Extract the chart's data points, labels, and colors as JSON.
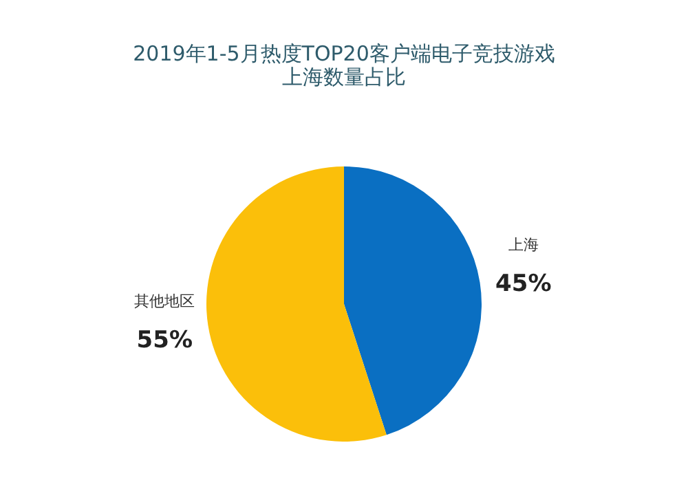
{
  "chart_data": {
    "type": "pie",
    "title": "2019年1-5月热度TOP20客户端电子竞技游戏",
    "subtitle": "上海数量占比",
    "categories": [
      "上海",
      "其他地区"
    ],
    "values": [
      45,
      55
    ],
    "colors": [
      "#0a6fc2",
      "#fbbf0a"
    ],
    "value_labels": [
      "45%",
      "55%"
    ]
  }
}
